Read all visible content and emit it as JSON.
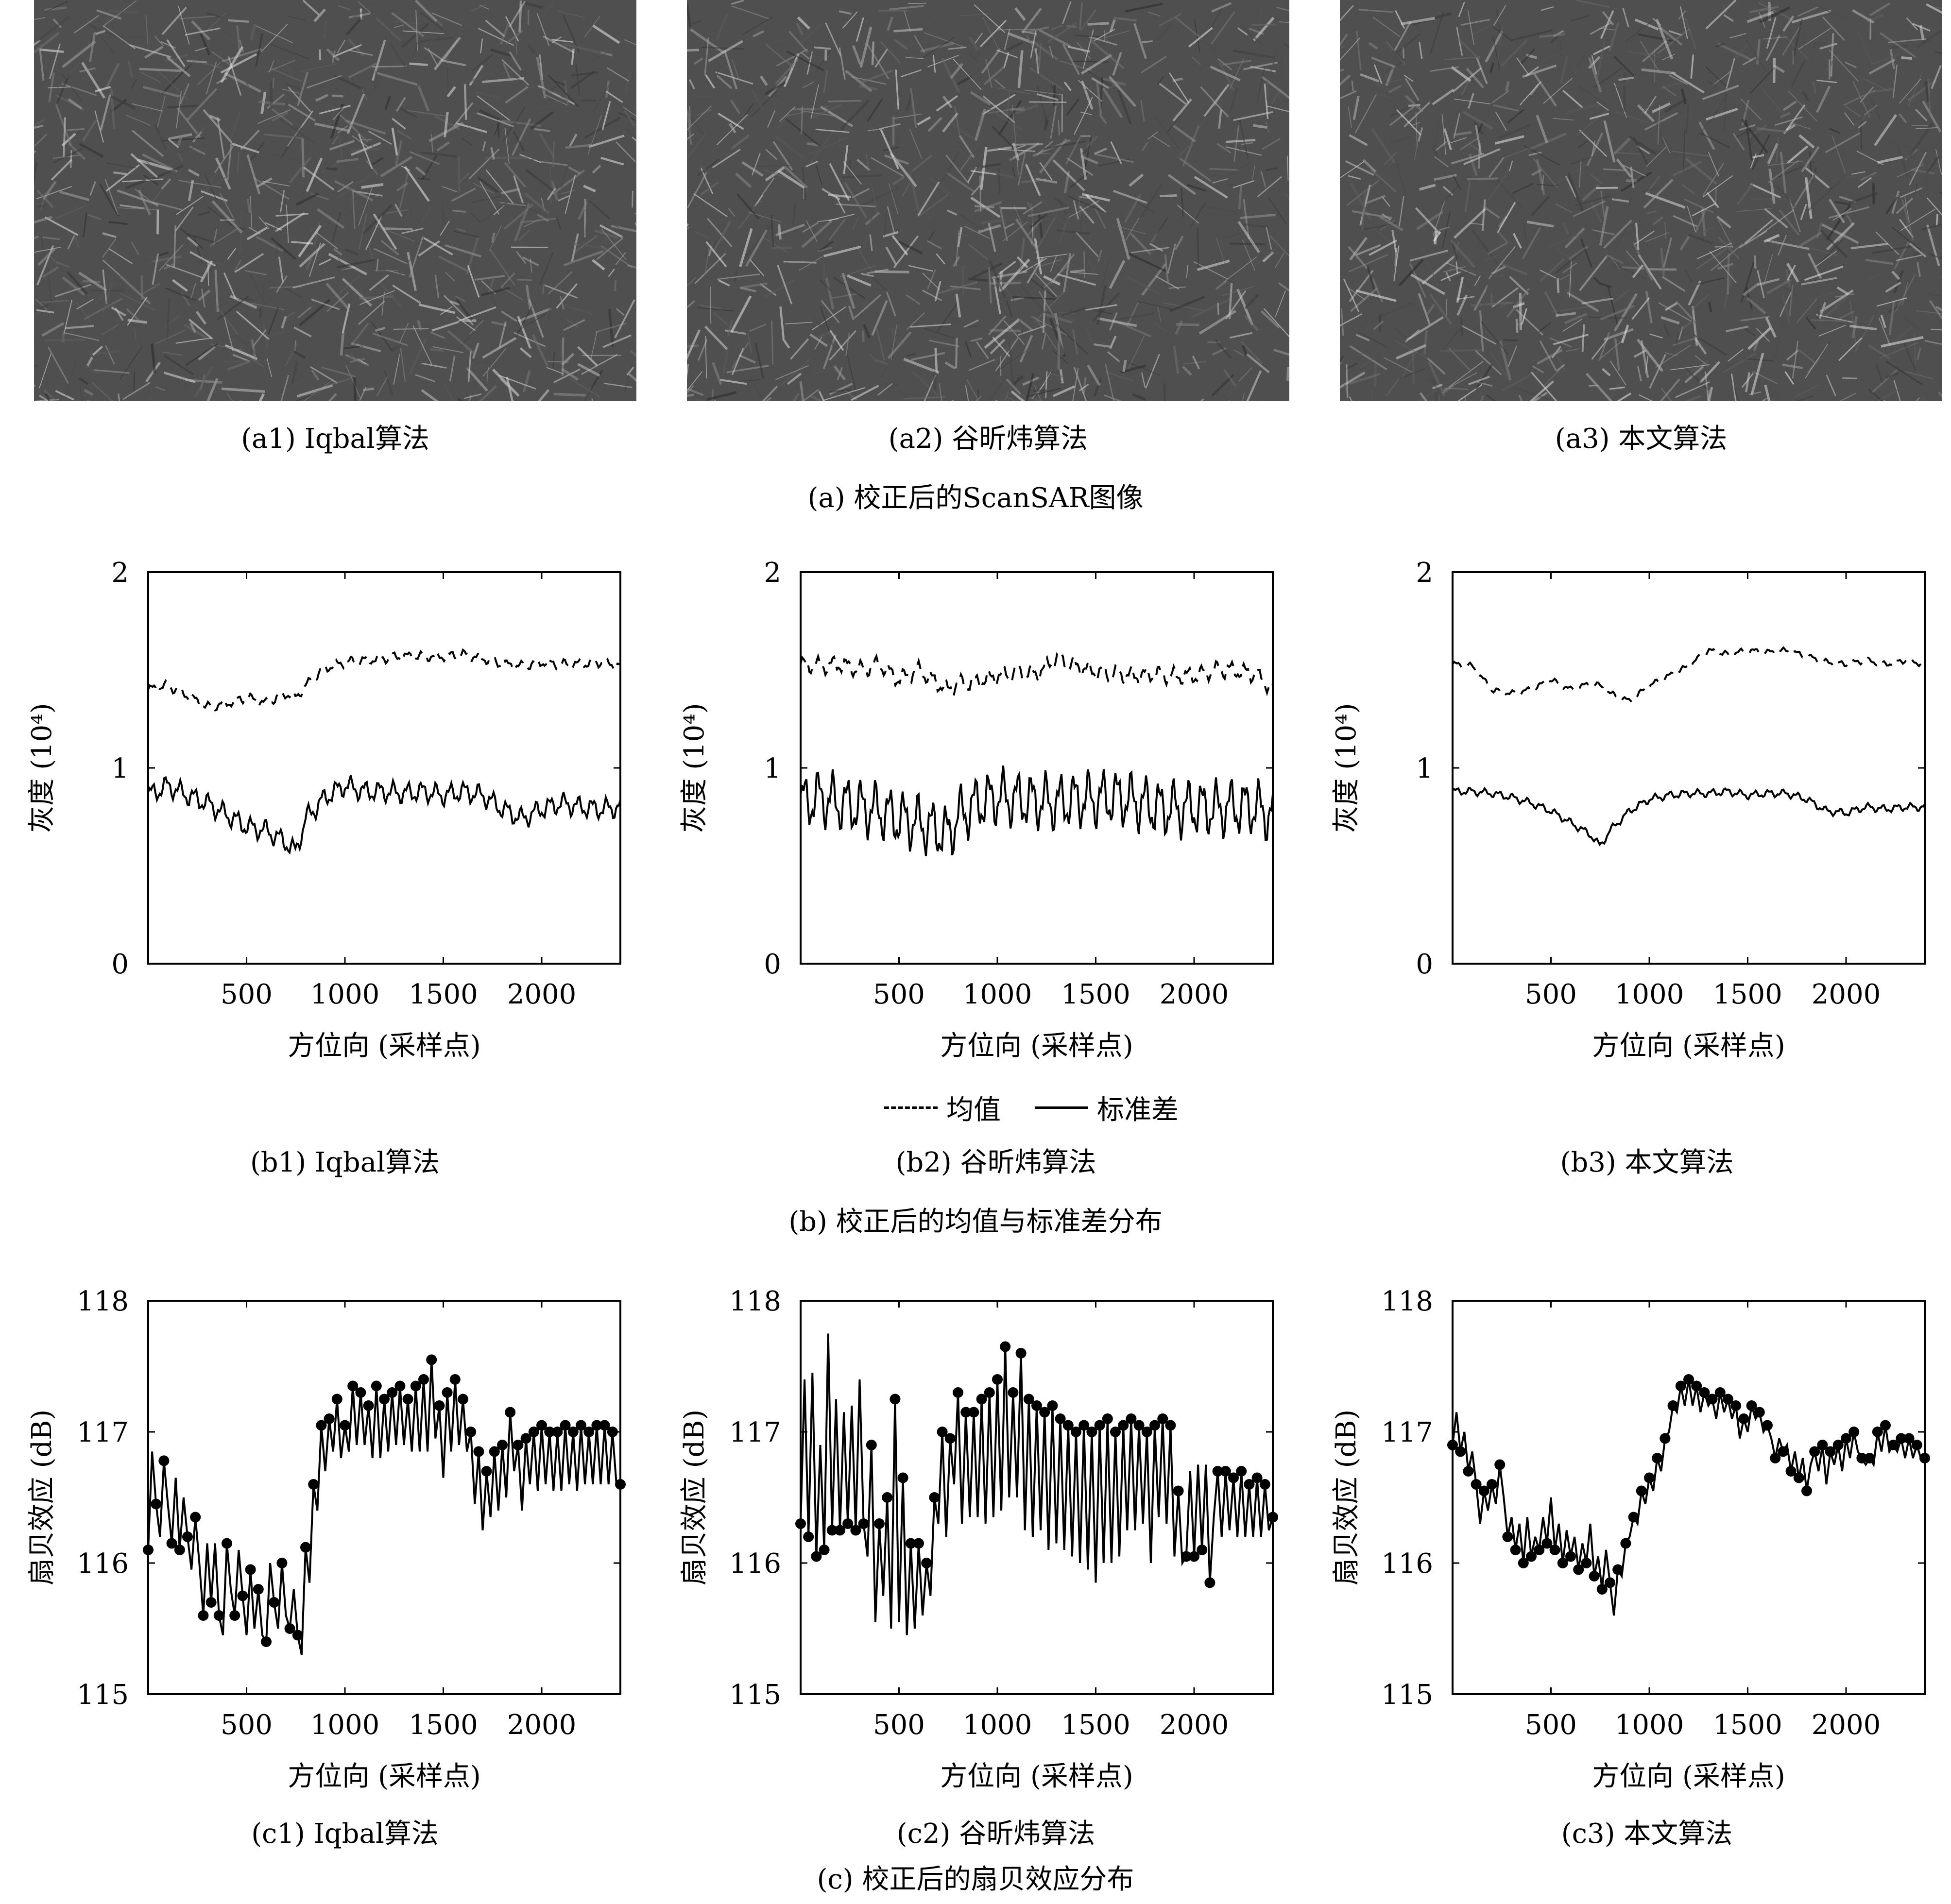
{
  "images": [
    {
      "caption": "(a1) Iqbal算法"
    },
    {
      "caption": "(a2) 谷昕炜算法"
    },
    {
      "caption": "(a3) 本文算法"
    }
  ],
  "group_captions": {
    "a": "(a) 校正后的ScanSAR图像",
    "b": "(b) 校正后的均值与标准差分布",
    "c": "(c) 校正后的扇贝效应分布"
  },
  "legend": {
    "mean": "均值",
    "std": "标准差"
  },
  "colors": {
    "line": "#000000",
    "axis": "#000000",
    "image_base": "#5a5a5a"
  },
  "chart_data": [
    {
      "type": "line",
      "caption": "(b1) Iqbal算法",
      "xlabel": "方位向 (采样点)",
      "ylabel": "灰度 (10⁴)",
      "xlim": [
        0,
        2400
      ],
      "ylim": [
        0,
        2
      ],
      "xticks": [
        500,
        1000,
        1500,
        2000
      ],
      "yticks": [
        0,
        1,
        2
      ],
      "x": [
        0,
        100,
        200,
        300,
        400,
        500,
        600,
        700,
        750,
        800,
        900,
        1000,
        1100,
        1200,
        1300,
        1400,
        1500,
        1600,
        1700,
        1800,
        1900,
        2000,
        2100,
        2200,
        2300,
        2400
      ],
      "series": [
        {
          "name": "均值",
          "style": "dashed",
          "values": [
            1.4,
            1.42,
            1.37,
            1.31,
            1.33,
            1.36,
            1.33,
            1.38,
            1.36,
            1.42,
            1.51,
            1.54,
            1.55,
            1.56,
            1.57,
            1.57,
            1.57,
            1.58,
            1.56,
            1.53,
            1.52,
            1.54,
            1.53,
            1.53,
            1.54,
            1.52
          ]
        },
        {
          "name": "标准差",
          "style": "solid",
          "values": [
            0.86,
            0.91,
            0.86,
            0.82,
            0.76,
            0.7,
            0.68,
            0.62,
            0.57,
            0.74,
            0.85,
            0.91,
            0.88,
            0.88,
            0.87,
            0.88,
            0.86,
            0.88,
            0.86,
            0.79,
            0.74,
            0.79,
            0.82,
            0.8,
            0.79,
            0.8
          ]
        }
      ],
      "wiggle": {
        "mean": 0.025,
        "std": 0.055
      }
    },
    {
      "type": "line",
      "caption": "(b2) 谷昕炜算法",
      "xlabel": "方位向 (采样点)",
      "ylabel": "灰度 (10⁴)",
      "xlim": [
        0,
        2400
      ],
      "ylim": [
        0,
        2
      ],
      "xticks": [
        500,
        1000,
        1500,
        2000
      ],
      "yticks": [
        0,
        1,
        2
      ],
      "x": [
        0,
        100,
        200,
        300,
        400,
        500,
        600,
        700,
        750,
        800,
        900,
        1000,
        1100,
        1200,
        1300,
        1400,
        1500,
        1600,
        1700,
        1800,
        1900,
        2000,
        2100,
        2200,
        2300,
        2400
      ],
      "series": [
        {
          "name": "均值",
          "style": "dashed",
          "values": [
            1.53,
            1.52,
            1.53,
            1.5,
            1.53,
            1.45,
            1.5,
            1.43,
            1.4,
            1.43,
            1.44,
            1.47,
            1.49,
            1.48,
            1.56,
            1.52,
            1.49,
            1.48,
            1.47,
            1.48,
            1.47,
            1.47,
            1.5,
            1.5,
            1.48,
            1.41
          ]
        },
        {
          "name": "标准差",
          "style": "solid",
          "values": [
            0.82,
            0.85,
            0.82,
            0.8,
            0.78,
            0.74,
            0.72,
            0.68,
            0.66,
            0.75,
            0.82,
            0.85,
            0.84,
            0.83,
            0.82,
            0.84,
            0.84,
            0.85,
            0.83,
            0.8,
            0.79,
            0.8,
            0.79,
            0.8,
            0.8,
            0.76
          ]
        }
      ],
      "wiggle": {
        "mean": 0.045,
        "std": 0.15
      }
    },
    {
      "type": "line",
      "caption": "(b3) 本文算法",
      "xlabel": "方位向 (采样点)",
      "ylabel": "灰度 (10⁴)",
      "xlim": [
        0,
        2400
      ],
      "ylim": [
        0,
        2
      ],
      "xticks": [
        500,
        1000,
        1500,
        2000
      ],
      "yticks": [
        0,
        1,
        2
      ],
      "x": [
        0,
        100,
        200,
        300,
        400,
        500,
        600,
        700,
        750,
        800,
        900,
        1000,
        1100,
        1200,
        1300,
        1400,
        1500,
        1600,
        1700,
        1800,
        1900,
        2000,
        2100,
        2200,
        2300,
        2400
      ],
      "series": [
        {
          "name": "均值",
          "style": "dashed",
          "values": [
            1.53,
            1.52,
            1.4,
            1.38,
            1.4,
            1.45,
            1.4,
            1.43,
            1.42,
            1.38,
            1.34,
            1.42,
            1.47,
            1.52,
            1.6,
            1.58,
            1.6,
            1.59,
            1.6,
            1.57,
            1.54,
            1.53,
            1.55,
            1.53,
            1.55,
            1.53
          ]
        },
        {
          "name": "标准差",
          "style": "solid",
          "values": [
            0.88,
            0.88,
            0.87,
            0.85,
            0.82,
            0.78,
            0.72,
            0.66,
            0.6,
            0.68,
            0.78,
            0.84,
            0.86,
            0.87,
            0.87,
            0.88,
            0.86,
            0.87,
            0.87,
            0.84,
            0.78,
            0.77,
            0.8,
            0.79,
            0.8,
            0.8
          ]
        }
      ],
      "wiggle": {
        "mean": 0.015,
        "std": 0.02
      }
    },
    {
      "type": "line",
      "caption": "(c1) Iqbal算法",
      "markers": true,
      "xlabel": "方位向 (采样点)",
      "ylabel": "扇贝效应 (dB)",
      "xlim": [
        0,
        2400
      ],
      "ylim": [
        115,
        118
      ],
      "xticks": [
        500,
        1000,
        1500,
        2000
      ],
      "yticks": [
        115,
        116,
        117,
        118
      ],
      "x": [
        0,
        20,
        40,
        60,
        80,
        100,
        120,
        140,
        160,
        180,
        200,
        220,
        240,
        260,
        280,
        300,
        320,
        340,
        360,
        380,
        400,
        420,
        440,
        460,
        480,
        500,
        520,
        540,
        560,
        580,
        600,
        620,
        640,
        660,
        680,
        700,
        720,
        740,
        760,
        780,
        800,
        820,
        840,
        860,
        880,
        900,
        920,
        940,
        960,
        980,
        1000,
        1020,
        1040,
        1060,
        1080,
        1100,
        1120,
        1140,
        1160,
        1180,
        1200,
        1220,
        1240,
        1260,
        1280,
        1300,
        1320,
        1340,
        1360,
        1380,
        1400,
        1420,
        1440,
        1460,
        1480,
        1500,
        1520,
        1540,
        1560,
        1580,
        1600,
        1620,
        1640,
        1660,
        1680,
        1700,
        1720,
        1740,
        1760,
        1780,
        1800,
        1820,
        1840,
        1860,
        1880,
        1900,
        1920,
        1940,
        1960,
        1980,
        2000,
        2020,
        2040,
        2060,
        2080,
        2100,
        2120,
        2140,
        2160,
        2180,
        2200,
        2220,
        2240,
        2260,
        2280,
        2300,
        2320,
        2340,
        2360,
        2380,
        2400
      ],
      "values": [
        116.1,
        116.85,
        116.45,
        116.2,
        116.78,
        116.45,
        116.15,
        116.65,
        116.1,
        116.5,
        116.2,
        115.95,
        116.35,
        116.0,
        115.6,
        116.15,
        115.7,
        116.15,
        115.6,
        115.45,
        116.15,
        115.8,
        115.6,
        116.1,
        115.75,
        115.45,
        115.95,
        115.5,
        115.8,
        115.45,
        115.4,
        116.0,
        115.7,
        115.5,
        116.0,
        115.6,
        115.5,
        115.8,
        115.45,
        115.3,
        116.12,
        115.85,
        116.6,
        116.4,
        117.05,
        116.7,
        117.1,
        116.85,
        117.25,
        116.8,
        117.05,
        116.85,
        117.35,
        116.9,
        117.3,
        116.9,
        117.2,
        116.8,
        117.35,
        116.8,
        117.25,
        116.85,
        117.3,
        116.9,
        117.35,
        116.9,
        117.25,
        116.85,
        117.35,
        116.85,
        117.4,
        116.85,
        117.55,
        116.95,
        117.2,
        116.65,
        117.3,
        116.85,
        117.4,
        116.9,
        117.25,
        116.85,
        117.0,
        116.45,
        116.85,
        116.25,
        116.7,
        116.35,
        116.85,
        116.4,
        116.9,
        116.5,
        117.15,
        116.7,
        116.9,
        116.4,
        116.95,
        116.6,
        117.0,
        116.55,
        117.05,
        116.6,
        117.0,
        116.55,
        117.0,
        116.55,
        117.05,
        116.6,
        117.0,
        116.55,
        117.05,
        116.6,
        117.0,
        116.6,
        117.05,
        116.6,
        117.05,
        116.6,
        117.0,
        116.6,
        116.6
      ]
    },
    {
      "type": "line",
      "caption": "(c2) 谷昕炜算法",
      "markers": true,
      "xlabel": "方位向 (采样点)",
      "ylabel": "扇贝效应 (dB)",
      "xlim": [
        0,
        2400
      ],
      "ylim": [
        115,
        118
      ],
      "xticks": [
        500,
        1000,
        1500,
        2000
      ],
      "yticks": [
        115,
        116,
        117,
        118
      ],
      "x": [
        0,
        20,
        40,
        60,
        80,
        100,
        120,
        140,
        160,
        180,
        200,
        220,
        240,
        260,
        280,
        300,
        320,
        340,
        360,
        380,
        400,
        420,
        440,
        460,
        480,
        500,
        520,
        540,
        560,
        580,
        600,
        620,
        640,
        660,
        680,
        700,
        720,
        740,
        760,
        780,
        800,
        820,
        840,
        860,
        880,
        900,
        920,
        940,
        960,
        980,
        1000,
        1020,
        1040,
        1060,
        1080,
        1100,
        1120,
        1140,
        1160,
        1180,
        1200,
        1220,
        1240,
        1260,
        1280,
        1300,
        1320,
        1340,
        1360,
        1380,
        1400,
        1420,
        1440,
        1460,
        1480,
        1500,
        1520,
        1540,
        1560,
        1580,
        1600,
        1620,
        1640,
        1660,
        1680,
        1700,
        1720,
        1740,
        1760,
        1780,
        1800,
        1820,
        1840,
        1860,
        1880,
        1900,
        1920,
        1940,
        1960,
        1980,
        2000,
        2020,
        2040,
        2060,
        2080,
        2100,
        2120,
        2140,
        2160,
        2180,
        2200,
        2220,
        2240,
        2260,
        2280,
        2300,
        2320,
        2340,
        2360,
        2380,
        2400
      ],
      "values": [
        116.3,
        117.4,
        116.2,
        117.45,
        116.05,
        116.9,
        116.1,
        117.75,
        116.25,
        117.25,
        116.25,
        117.15,
        116.3,
        117.2,
        116.25,
        117.4,
        116.3,
        116.05,
        116.9,
        115.55,
        116.3,
        115.75,
        116.5,
        115.5,
        117.25,
        115.55,
        116.65,
        115.45,
        116.15,
        115.5,
        116.15,
        115.6,
        116.0,
        115.75,
        116.5,
        116.3,
        117.0,
        116.2,
        116.95,
        116.6,
        117.3,
        116.3,
        117.15,
        116.35,
        117.15,
        116.35,
        117.25,
        116.3,
        117.3,
        116.35,
        117.4,
        116.4,
        117.65,
        116.5,
        117.3,
        116.5,
        117.6,
        116.25,
        117.25,
        116.2,
        117.2,
        116.25,
        117.15,
        116.1,
        117.2,
        116.15,
        117.1,
        116.1,
        117.05,
        116.05,
        117.0,
        116.0,
        117.05,
        115.95,
        117.0,
        115.85,
        117.05,
        116.0,
        117.1,
        116.0,
        117.0,
        116.05,
        117.05,
        116.25,
        117.1,
        116.25,
        117.05,
        116.3,
        117.0,
        116.0,
        117.05,
        116.35,
        117.1,
        116.3,
        117.05,
        116.05,
        116.55,
        116.0,
        116.05,
        116.7,
        116.05,
        116.75,
        116.1,
        116.75,
        115.85,
        116.35,
        116.7,
        116.2,
        116.7,
        116.25,
        116.65,
        116.2,
        116.7,
        116.2,
        116.6,
        116.2,
        116.65,
        116.2,
        116.6,
        116.25,
        116.35
      ]
    },
    {
      "type": "line",
      "caption": "(c3) 本文算法",
      "markers": true,
      "xlabel": "方位向 (采样点)",
      "ylabel": "扇贝效应 (dB)",
      "xlim": [
        0,
        2400
      ],
      "ylim": [
        115,
        118
      ],
      "xticks": [
        500,
        1000,
        1500,
        2000
      ],
      "yticks": [
        115,
        116,
        117,
        118
      ],
      "x": [
        0,
        20,
        40,
        60,
        80,
        100,
        120,
        140,
        160,
        180,
        200,
        220,
        240,
        260,
        280,
        300,
        320,
        340,
        360,
        380,
        400,
        420,
        440,
        460,
        480,
        500,
        520,
        540,
        560,
        580,
        600,
        620,
        640,
        660,
        680,
        700,
        720,
        740,
        760,
        780,
        800,
        820,
        840,
        860,
        880,
        900,
        920,
        940,
        960,
        980,
        1000,
        1020,
        1040,
        1060,
        1080,
        1100,
        1120,
        1140,
        1160,
        1180,
        1200,
        1220,
        1240,
        1260,
        1280,
        1300,
        1320,
        1340,
        1360,
        1380,
        1400,
        1420,
        1440,
        1460,
        1480,
        1500,
        1520,
        1540,
        1560,
        1580,
        1600,
        1620,
        1640,
        1660,
        1680,
        1700,
        1720,
        1740,
        1760,
        1780,
        1800,
        1820,
        1840,
        1860,
        1880,
        1900,
        1920,
        1940,
        1960,
        1980,
        2000,
        2020,
        2040,
        2060,
        2080,
        2100,
        2120,
        2140,
        2160,
        2180,
        2200,
        2220,
        2240,
        2260,
        2280,
        2300,
        2320,
        2340,
        2360,
        2380,
        2400
      ],
      "values": [
        116.9,
        117.15,
        116.85,
        117.0,
        116.7,
        116.85,
        116.6,
        116.3,
        116.55,
        116.4,
        116.6,
        116.45,
        116.75,
        116.5,
        116.2,
        116.35,
        116.1,
        116.3,
        116.0,
        116.35,
        116.05,
        116.2,
        116.1,
        116.35,
        116.15,
        116.5,
        116.1,
        116.3,
        116.0,
        116.25,
        116.05,
        116.2,
        115.95,
        116.15,
        116.0,
        116.3,
        115.9,
        116.05,
        115.8,
        116.1,
        115.85,
        115.6,
        115.95,
        115.9,
        116.15,
        116.2,
        116.35,
        116.3,
        116.55,
        116.45,
        116.65,
        116.55,
        116.8,
        116.7,
        116.95,
        117.0,
        117.2,
        117.15,
        117.35,
        117.2,
        117.4,
        117.2,
        117.35,
        117.15,
        117.3,
        117.2,
        117.25,
        117.1,
        117.3,
        117.15,
        117.25,
        117.1,
        117.2,
        116.95,
        117.1,
        117.0,
        117.2,
        117.1,
        117.15,
        117.0,
        117.05,
        116.95,
        116.8,
        116.95,
        116.85,
        116.9,
        116.7,
        116.85,
        116.65,
        116.8,
        116.55,
        116.75,
        116.85,
        116.7,
        116.9,
        116.6,
        116.85,
        116.75,
        116.9,
        116.7,
        116.95,
        116.8,
        117.0,
        116.85,
        116.8,
        116.75,
        116.8,
        116.75,
        117.0,
        116.85,
        117.05,
        116.85,
        116.9,
        116.85,
        116.95,
        116.8,
        116.95,
        116.8,
        116.9,
        116.8,
        116.8
      ]
    }
  ]
}
